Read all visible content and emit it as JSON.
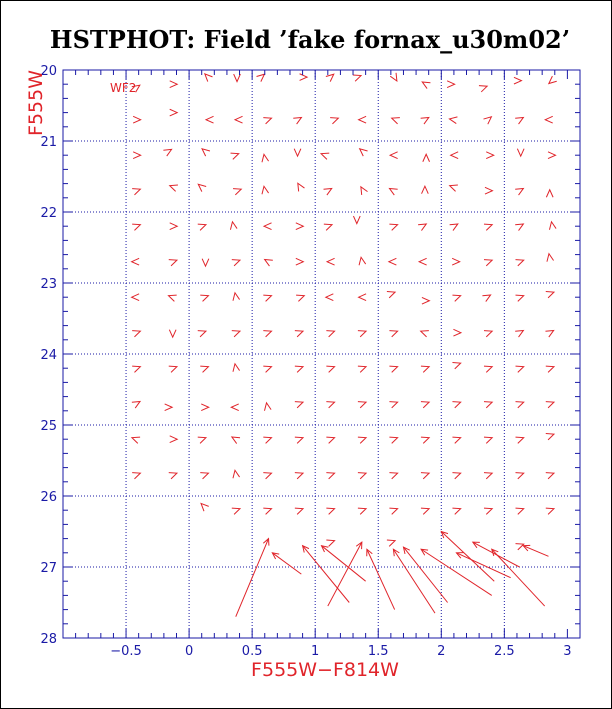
{
  "chart_data": {
    "type": "scatter",
    "title": "HSTPHOT: Field ’fake fornax_u30m02’",
    "xlabel": "F555W−F814W",
    "ylabel": "F555W",
    "chip_label": "WF2",
    "xlim": [
      -1.0,
      3.1
    ],
    "ylim": [
      28.0,
      20.0
    ],
    "y_inverted": true,
    "grid": true,
    "grid_style": "dotted",
    "x_grid": [
      -0.5,
      0.0,
      0.5,
      1.0,
      1.5,
      2.0,
      2.5
    ],
    "y_grid": [
      21,
      22,
      23,
      24,
      25,
      26,
      27
    ],
    "x_ticks": [
      {
        "value": -0.5,
        "label": "−0.5"
      },
      {
        "value": 0.0,
        "label": "0"
      },
      {
        "value": 0.5,
        "label": "0.5"
      },
      {
        "value": 1.0,
        "label": "1"
      },
      {
        "value": 1.5,
        "label": "1.5"
      },
      {
        "value": 2.0,
        "label": "2"
      },
      {
        "value": 2.5,
        "label": "2.5"
      },
      {
        "value": 3.0,
        "label": "3"
      }
    ],
    "y_ticks": [
      {
        "value": 20,
        "label": "20"
      },
      {
        "value": 21,
        "label": "21"
      },
      {
        "value": 22,
        "label": "22"
      },
      {
        "value": 23,
        "label": "23"
      },
      {
        "value": 24,
        "label": "24"
      },
      {
        "value": 25,
        "label": "25"
      },
      {
        "value": 26,
        "label": "26"
      },
      {
        "value": 27,
        "label": "27"
      },
      {
        "value": 28,
        "label": "28"
      }
    ],
    "colors": {
      "axes": "#1a1aa6",
      "grid": "#1a1aa6",
      "arrows": "#e0242a",
      "labels": "#e0242a",
      "title": "#000000"
    },
    "arrows": [
      {
        "from": [
          0.37,
          27.7
        ],
        "to": [
          0.63,
          26.6
        ]
      },
      {
        "from": [
          0.89,
          27.1
        ],
        "to": [
          0.66,
          26.8
        ]
      },
      {
        "from": [
          1.27,
          27.5
        ],
        "to": [
          0.9,
          26.7
        ]
      },
      {
        "from": [
          1.4,
          27.2
        ],
        "to": [
          1.05,
          26.7
        ]
      },
      {
        "from": [
          1.1,
          27.55
        ],
        "to": [
          1.37,
          26.65
        ]
      },
      {
        "from": [
          1.63,
          27.6
        ],
        "to": [
          1.41,
          26.75
        ]
      },
      {
        "from": [
          1.95,
          27.65
        ],
        "to": [
          1.62,
          26.75
        ]
      },
      {
        "from": [
          2.05,
          27.5
        ],
        "to": [
          1.7,
          26.72
        ]
      },
      {
        "from": [
          2.4,
          27.4
        ],
        "to": [
          1.84,
          26.75
        ]
      },
      {
        "from": [
          2.42,
          27.2
        ],
        "to": [
          2.0,
          26.5
        ]
      },
      {
        "from": [
          2.55,
          27.15
        ],
        "to": [
          2.12,
          26.8
        ]
      },
      {
        "from": [
          2.62,
          27.0
        ],
        "to": [
          2.25,
          26.65
        ]
      },
      {
        "from": [
          2.82,
          27.55
        ],
        "to": [
          2.4,
          26.75
        ]
      },
      {
        "from": [
          2.85,
          26.85
        ],
        "to": [
          2.65,
          26.7
        ]
      }
    ],
    "markers": [
      {
        "x": -0.42,
        "y": 20.25,
        "dir": 35
      },
      {
        "x": -0.13,
        "y": 20.2,
        "dir": 0
      },
      {
        "x": 0.15,
        "y": 20.1,
        "dir": 135
      },
      {
        "x": 0.38,
        "y": 20.1,
        "dir": -90
      },
      {
        "x": 0.57,
        "y": 20.1,
        "dir": 40
      },
      {
        "x": 0.9,
        "y": 20.1,
        "dir": 0
      },
      {
        "x": 1.12,
        "y": 20.1,
        "dir": 40
      },
      {
        "x": 1.33,
        "y": 20.1,
        "dir": 20
      },
      {
        "x": 1.63,
        "y": 20.1,
        "dir": -60
      },
      {
        "x": 1.88,
        "y": 20.2,
        "dir": 150
      },
      {
        "x": 2.07,
        "y": 20.2,
        "dir": 0
      },
      {
        "x": 2.33,
        "y": 20.25,
        "dir": 20
      },
      {
        "x": 2.6,
        "y": 20.15,
        "dir": 0
      },
      {
        "x": 2.88,
        "y": 20.15,
        "dir": -140
      },
      {
        "x": -0.42,
        "y": 20.7,
        "dir": 0
      },
      {
        "x": -0.13,
        "y": 20.6,
        "dir": 0
      },
      {
        "x": 0.17,
        "y": 20.7,
        "dir": 180
      },
      {
        "x": 0.4,
        "y": 20.7,
        "dir": 180
      },
      {
        "x": 0.62,
        "y": 20.7,
        "dir": 20
      },
      {
        "x": 0.86,
        "y": 20.7,
        "dir": 30
      },
      {
        "x": 1.15,
        "y": 20.7,
        "dir": 20
      },
      {
        "x": 1.38,
        "y": 20.7,
        "dir": 180
      },
      {
        "x": 1.64,
        "y": 20.7,
        "dir": 160
      },
      {
        "x": 1.87,
        "y": 20.7,
        "dir": 30
      },
      {
        "x": 2.1,
        "y": 20.7,
        "dir": 170
      },
      {
        "x": 2.37,
        "y": 20.7,
        "dir": 40
      },
      {
        "x": 2.62,
        "y": 20.7,
        "dir": 30
      },
      {
        "x": 2.86,
        "y": 20.7,
        "dir": 180
      },
      {
        "x": -0.42,
        "y": 21.2,
        "dir": 0
      },
      {
        "x": -0.17,
        "y": 21.15,
        "dir": 30
      },
      {
        "x": 0.13,
        "y": 21.15,
        "dir": 140
      },
      {
        "x": 0.36,
        "y": 21.2,
        "dir": 20
      },
      {
        "x": 0.6,
        "y": 21.25,
        "dir": 100
      },
      {
        "x": 0.86,
        "y": 21.15,
        "dir": -90
      },
      {
        "x": 1.08,
        "y": 21.2,
        "dir": 160
      },
      {
        "x": 1.38,
        "y": 21.15,
        "dir": 140
      },
      {
        "x": 1.63,
        "y": 21.2,
        "dir": 180
      },
      {
        "x": 1.88,
        "y": 21.25,
        "dir": 90
      },
      {
        "x": 2.11,
        "y": 21.2,
        "dir": 180
      },
      {
        "x": 2.38,
        "y": 21.2,
        "dir": 0
      },
      {
        "x": 2.63,
        "y": 21.15,
        "dir": -90
      },
      {
        "x": 2.87,
        "y": 21.2,
        "dir": 0
      },
      {
        "x": -0.42,
        "y": 21.7,
        "dir": 20
      },
      {
        "x": -0.12,
        "y": 21.65,
        "dir": 160
      },
      {
        "x": 0.1,
        "y": 21.65,
        "dir": 140
      },
      {
        "x": 0.38,
        "y": 21.7,
        "dir": 20
      },
      {
        "x": 0.6,
        "y": 21.7,
        "dir": 100
      },
      {
        "x": 0.88,
        "y": 21.65,
        "dir": 120
      },
      {
        "x": 1.1,
        "y": 21.7,
        "dir": 30
      },
      {
        "x": 1.38,
        "y": 21.7,
        "dir": 120
      },
      {
        "x": 1.62,
        "y": 21.7,
        "dir": 150
      },
      {
        "x": 1.87,
        "y": 21.7,
        "dir": 90
      },
      {
        "x": 2.1,
        "y": 21.65,
        "dir": 160
      },
      {
        "x": 2.37,
        "y": 21.7,
        "dir": 0
      },
      {
        "x": 2.62,
        "y": 21.7,
        "dir": 30
      },
      {
        "x": 2.86,
        "y": 21.75,
        "dir": 90
      },
      {
        "x": -0.42,
        "y": 22.2,
        "dir": 20
      },
      {
        "x": -0.13,
        "y": 22.2,
        "dir": 0
      },
      {
        "x": 0.1,
        "y": 22.2,
        "dir": 20
      },
      {
        "x": 0.35,
        "y": 22.2,
        "dir": 100
      },
      {
        "x": 0.63,
        "y": 22.2,
        "dir": 180
      },
      {
        "x": 0.87,
        "y": 22.2,
        "dir": 0
      },
      {
        "x": 1.1,
        "y": 22.2,
        "dir": 20
      },
      {
        "x": 1.33,
        "y": 22.1,
        "dir": -90
      },
      {
        "x": 1.62,
        "y": 22.2,
        "dir": 20
      },
      {
        "x": 1.85,
        "y": 22.2,
        "dir": 30
      },
      {
        "x": 2.1,
        "y": 22.2,
        "dir": 30
      },
      {
        "x": 2.37,
        "y": 22.2,
        "dir": 20
      },
      {
        "x": 2.62,
        "y": 22.2,
        "dir": 30
      },
      {
        "x": 2.88,
        "y": 22.2,
        "dir": 100
      },
      {
        "x": -0.42,
        "y": 22.7,
        "dir": 180
      },
      {
        "x": -0.13,
        "y": 22.7,
        "dir": 20
      },
      {
        "x": 0.13,
        "y": 22.7,
        "dir": -90
      },
      {
        "x": 0.37,
        "y": 22.7,
        "dir": 20
      },
      {
        "x": 0.63,
        "y": 22.7,
        "dir": 150
      },
      {
        "x": 0.87,
        "y": 22.7,
        "dir": 0
      },
      {
        "x": 1.13,
        "y": 22.7,
        "dir": 180
      },
      {
        "x": 1.37,
        "y": 22.7,
        "dir": 100
      },
      {
        "x": 1.62,
        "y": 22.7,
        "dir": 180
      },
      {
        "x": 1.86,
        "y": 22.7,
        "dir": 180
      },
      {
        "x": 2.11,
        "y": 22.7,
        "dir": 0
      },
      {
        "x": 2.37,
        "y": 22.7,
        "dir": 20
      },
      {
        "x": 2.62,
        "y": 22.7,
        "dir": 20
      },
      {
        "x": 2.86,
        "y": 22.65,
        "dir": 100
      },
      {
        "x": -0.42,
        "y": 23.2,
        "dir": 180
      },
      {
        "x": -0.13,
        "y": 23.2,
        "dir": 160
      },
      {
        "x": 0.12,
        "y": 23.2,
        "dir": 20
      },
      {
        "x": 0.37,
        "y": 23.2,
        "dir": 100
      },
      {
        "x": 0.62,
        "y": 23.2,
        "dir": 20
      },
      {
        "x": 0.88,
        "y": 23.2,
        "dir": 20
      },
      {
        "x": 1.12,
        "y": 23.2,
        "dir": 180
      },
      {
        "x": 1.38,
        "y": 23.2,
        "dir": 180
      },
      {
        "x": 1.6,
        "y": 23.15,
        "dir": 20
      },
      {
        "x": 1.87,
        "y": 23.25,
        "dir": 0
      },
      {
        "x": 2.12,
        "y": 23.2,
        "dir": 20
      },
      {
        "x": 2.36,
        "y": 23.2,
        "dir": 30
      },
      {
        "x": 2.62,
        "y": 23.2,
        "dir": 20
      },
      {
        "x": 2.86,
        "y": 23.15,
        "dir": 20
      },
      {
        "x": -0.42,
        "y": 23.7,
        "dir": 20
      },
      {
        "x": -0.13,
        "y": 23.7,
        "dir": -90
      },
      {
        "x": 0.1,
        "y": 23.7,
        "dir": 20
      },
      {
        "x": 0.37,
        "y": 23.7,
        "dir": 20
      },
      {
        "x": 0.62,
        "y": 23.7,
        "dir": 20
      },
      {
        "x": 0.87,
        "y": 23.7,
        "dir": 20
      },
      {
        "x": 1.12,
        "y": 23.7,
        "dir": 20
      },
      {
        "x": 1.37,
        "y": 23.7,
        "dir": 20
      },
      {
        "x": 1.62,
        "y": 23.7,
        "dir": 20
      },
      {
        "x": 1.87,
        "y": 23.7,
        "dir": 160
      },
      {
        "x": 2.12,
        "y": 23.7,
        "dir": 0
      },
      {
        "x": 2.37,
        "y": 23.7,
        "dir": 20
      },
      {
        "x": 2.62,
        "y": 23.7,
        "dir": 30
      },
      {
        "x": 2.86,
        "y": 23.7,
        "dir": 30
      },
      {
        "x": -0.42,
        "y": 24.2,
        "dir": 20
      },
      {
        "x": -0.13,
        "y": 24.2,
        "dir": 20
      },
      {
        "x": 0.12,
        "y": 24.2,
        "dir": 20
      },
      {
        "x": 0.37,
        "y": 24.2,
        "dir": 100
      },
      {
        "x": 0.62,
        "y": 24.2,
        "dir": 20
      },
      {
        "x": 0.87,
        "y": 24.2,
        "dir": 20
      },
      {
        "x": 1.12,
        "y": 24.2,
        "dir": 20
      },
      {
        "x": 1.37,
        "y": 24.2,
        "dir": 20
      },
      {
        "x": 1.62,
        "y": 24.2,
        "dir": 20
      },
      {
        "x": 1.87,
        "y": 24.2,
        "dir": 20
      },
      {
        "x": 2.12,
        "y": 24.15,
        "dir": 20
      },
      {
        "x": 2.37,
        "y": 24.2,
        "dir": 20
      },
      {
        "x": 2.62,
        "y": 24.2,
        "dir": 20
      },
      {
        "x": 2.86,
        "y": 24.2,
        "dir": 20
      },
      {
        "x": -0.42,
        "y": 24.7,
        "dir": 30
      },
      {
        "x": -0.17,
        "y": 24.75,
        "dir": 0
      },
      {
        "x": 0.12,
        "y": 24.75,
        "dir": 0
      },
      {
        "x": 0.37,
        "y": 24.75,
        "dir": 180
      },
      {
        "x": 0.62,
        "y": 24.75,
        "dir": 100
      },
      {
        "x": 0.87,
        "y": 24.7,
        "dir": 20
      },
      {
        "x": 1.12,
        "y": 24.7,
        "dir": 20
      },
      {
        "x": 1.37,
        "y": 24.7,
        "dir": 20
      },
      {
        "x": 1.62,
        "y": 24.7,
        "dir": 20
      },
      {
        "x": 1.87,
        "y": 24.7,
        "dir": 20
      },
      {
        "x": 2.12,
        "y": 24.7,
        "dir": 20
      },
      {
        "x": 2.37,
        "y": 24.7,
        "dir": 20
      },
      {
        "x": 2.62,
        "y": 24.7,
        "dir": 20
      },
      {
        "x": 2.86,
        "y": 24.7,
        "dir": 20
      },
      {
        "x": -0.42,
        "y": 25.2,
        "dir": 160
      },
      {
        "x": -0.13,
        "y": 25.2,
        "dir": 0
      },
      {
        "x": 0.1,
        "y": 25.2,
        "dir": 20
      },
      {
        "x": 0.37,
        "y": 25.2,
        "dir": 150
      },
      {
        "x": 0.62,
        "y": 25.2,
        "dir": 20
      },
      {
        "x": 0.87,
        "y": 25.2,
        "dir": 20
      },
      {
        "x": 1.12,
        "y": 25.2,
        "dir": 20
      },
      {
        "x": 1.37,
        "y": 25.2,
        "dir": 20
      },
      {
        "x": 1.62,
        "y": 25.2,
        "dir": 20
      },
      {
        "x": 1.87,
        "y": 25.2,
        "dir": 20
      },
      {
        "x": 2.12,
        "y": 25.2,
        "dir": 20
      },
      {
        "x": 2.37,
        "y": 25.2,
        "dir": 20
      },
      {
        "x": 2.62,
        "y": 25.2,
        "dir": 20
      },
      {
        "x": 2.86,
        "y": 25.15,
        "dir": 20
      },
      {
        "x": -0.42,
        "y": 25.7,
        "dir": 20
      },
      {
        "x": -0.13,
        "y": 25.7,
        "dir": 20
      },
      {
        "x": 0.12,
        "y": 25.7,
        "dir": 20
      },
      {
        "x": 0.37,
        "y": 25.7,
        "dir": 100
      },
      {
        "x": 0.62,
        "y": 25.7,
        "dir": 20
      },
      {
        "x": 0.87,
        "y": 25.7,
        "dir": 20
      },
      {
        "x": 1.12,
        "y": 25.7,
        "dir": 20
      },
      {
        "x": 1.37,
        "y": 25.7,
        "dir": 20
      },
      {
        "x": 1.62,
        "y": 25.7,
        "dir": 20
      },
      {
        "x": 1.87,
        "y": 25.7,
        "dir": 20
      },
      {
        "x": 2.12,
        "y": 25.7,
        "dir": 20
      },
      {
        "x": 2.37,
        "y": 25.7,
        "dir": 20
      },
      {
        "x": 2.62,
        "y": 25.7,
        "dir": 20
      },
      {
        "x": 2.86,
        "y": 25.7,
        "dir": 20
      },
      {
        "x": 0.12,
        "y": 26.15,
        "dir": 135
      },
      {
        "x": 0.37,
        "y": 26.2,
        "dir": 20
      },
      {
        "x": 0.62,
        "y": 26.2,
        "dir": 20
      },
      {
        "x": 0.87,
        "y": 26.2,
        "dir": 20
      },
      {
        "x": 1.12,
        "y": 26.2,
        "dir": 20
      },
      {
        "x": 1.37,
        "y": 26.2,
        "dir": 20
      },
      {
        "x": 1.62,
        "y": 26.2,
        "dir": 20
      },
      {
        "x": 1.87,
        "y": 26.2,
        "dir": 20
      },
      {
        "x": 2.12,
        "y": 26.2,
        "dir": 20
      },
      {
        "x": 2.37,
        "y": 26.2,
        "dir": 20
      },
      {
        "x": 2.62,
        "y": 26.2,
        "dir": 20
      },
      {
        "x": 2.86,
        "y": 26.2,
        "dir": 20
      },
      {
        "x": 1.12,
        "y": 26.65,
        "dir": 20
      },
      {
        "x": 1.6,
        "y": 26.65,
        "dir": 20
      },
      {
        "x": 2.62,
        "y": 26.7,
        "dir": 20
      }
    ]
  }
}
